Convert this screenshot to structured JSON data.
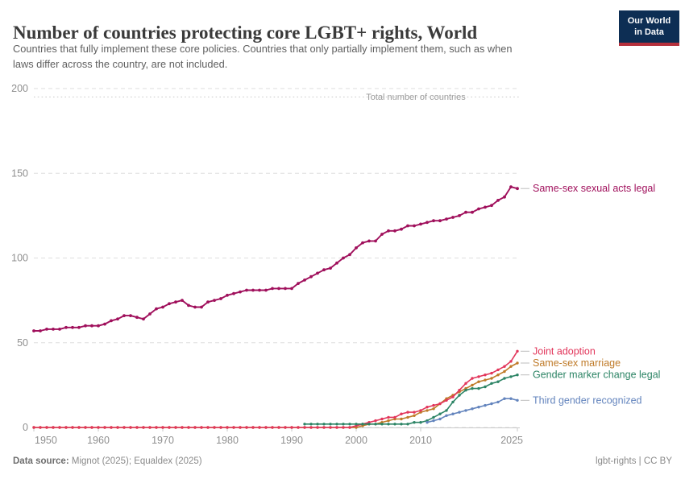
{
  "header": {
    "title": "Number of countries protecting core LGBT+ rights, World",
    "subtitle_line1": "Countries that fully implement these core policies. Countries that only partially implement them, such as when",
    "subtitle_line2": "laws differ across the country, are not included."
  },
  "logo": {
    "line1": "Our World",
    "line2": "in Data",
    "bg_color": "#0d2e54",
    "accent_color": "#b5303c"
  },
  "chart_data": {
    "type": "line",
    "title": "Number of countries protecting core LGBT+ rights, World",
    "xlabel": "",
    "ylabel": "",
    "xlim": [
      1950,
      2026
    ],
    "ylim": [
      0,
      205
    ],
    "grid": true,
    "legend_position": "right-edge-labels",
    "x_ticks": [
      1950,
      1960,
      1970,
      1980,
      1990,
      2000,
      2010,
      2025
    ],
    "y_ticks": [
      0,
      50,
      100,
      150,
      200
    ],
    "annotation": {
      "label": "Total number of countries",
      "value": 195
    },
    "series": [
      {
        "name": "same-sex-sexual-acts-legal",
        "label": "Same-sex sexual acts legal",
        "color": "#a0105c",
        "start_year": 1950,
        "values": [
          57,
          57,
          58,
          58,
          58,
          59,
          59,
          59,
          60,
          60,
          60,
          61,
          63,
          64,
          66,
          66,
          65,
          64,
          67,
          70,
          71,
          73,
          74,
          75,
          72,
          71,
          71,
          74,
          75,
          76,
          78,
          79,
          80,
          81,
          81,
          81,
          81,
          82,
          82,
          82,
          82,
          85,
          87,
          89,
          91,
          93,
          94,
          97,
          100,
          102,
          106,
          109,
          110,
          110,
          114,
          116,
          116,
          117,
          119,
          119,
          120,
          121,
          122,
          122,
          123,
          124,
          125,
          127,
          127,
          129,
          130,
          131,
          134,
          136,
          142,
          141
        ]
      },
      {
        "name": "joint-adoption",
        "label": "Joint adoption",
        "color": "#e2365b",
        "start_year": 1950,
        "values": [
          0,
          0,
          0,
          0,
          0,
          0,
          0,
          0,
          0,
          0,
          0,
          0,
          0,
          0,
          0,
          0,
          0,
          0,
          0,
          0,
          0,
          0,
          0,
          0,
          0,
          0,
          0,
          0,
          0,
          0,
          0,
          0,
          0,
          0,
          0,
          0,
          0,
          0,
          0,
          0,
          0,
          0,
          0,
          0,
          0,
          0,
          0,
          0,
          0,
          0,
          1,
          2,
          3,
          4,
          5,
          6,
          6,
          8,
          9,
          9,
          10,
          12,
          13,
          14,
          16,
          18,
          22,
          26,
          29,
          30,
          31,
          32,
          34,
          36,
          39,
          45
        ]
      },
      {
        "name": "same-sex-marriage",
        "label": "Same-sex marriage",
        "color": "#bf7a28",
        "start_year": 1950,
        "values": [
          0,
          0,
          0,
          0,
          0,
          0,
          0,
          0,
          0,
          0,
          0,
          0,
          0,
          0,
          0,
          0,
          0,
          0,
          0,
          0,
          0,
          0,
          0,
          0,
          0,
          0,
          0,
          0,
          0,
          0,
          0,
          0,
          0,
          0,
          0,
          0,
          0,
          0,
          0,
          0,
          0,
          0,
          0,
          0,
          0,
          0,
          0,
          0,
          0,
          0,
          0,
          1,
          2,
          2,
          3,
          4,
          5,
          5,
          6,
          7,
          9,
          10,
          11,
          14,
          17,
          19,
          21,
          23,
          25,
          27,
          28,
          29,
          31,
          33,
          36,
          38
        ]
      },
      {
        "name": "gender-marker-change-legal",
        "label": "Gender marker change legal",
        "color": "#2c8465",
        "start_year": 1992,
        "values": [
          2,
          2,
          2,
          2,
          2,
          2,
          2,
          2,
          2,
          2,
          2,
          2,
          2,
          2,
          2,
          2,
          2,
          3,
          3,
          4,
          6,
          8,
          10,
          15,
          19,
          22,
          23,
          23,
          24,
          26,
          27,
          29,
          30,
          31
        ]
      },
      {
        "name": "third-gender-recognized",
        "label": "Third gender recognized",
        "color": "#6384bd",
        "start_year": 2011,
        "values": [
          3,
          4,
          5,
          7,
          8,
          9,
          10,
          11,
          12,
          13,
          14,
          15,
          17,
          17,
          16
        ]
      }
    ]
  },
  "footer": {
    "source_label": "Data source:",
    "source_value": " Mignot (2025); Equaldex (2025)",
    "license": "lgbt-rights | CC BY"
  }
}
